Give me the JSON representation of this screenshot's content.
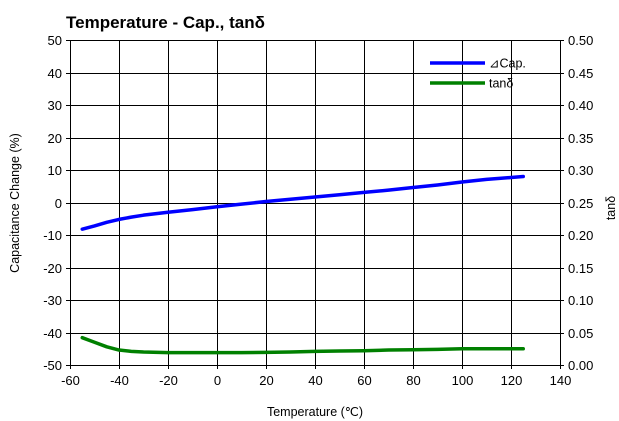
{
  "chart_data": {
    "type": "line",
    "title": "Temperature - Cap., tanδ",
    "xlabel": "Temperature (℃)",
    "ylabel": "Capacitance Change (%)",
    "y2label": "tanδ",
    "xlim": [
      -60,
      140
    ],
    "ylim": [
      -50,
      50
    ],
    "y2lim": [
      0,
      0.5
    ],
    "xticks": [
      "-60",
      "-40",
      "-20",
      "0",
      "20",
      "40",
      "60",
      "80",
      "100",
      "120",
      "140"
    ],
    "yticks": [
      "-50",
      "-40",
      "-30",
      "-20",
      "-10",
      "0",
      "10",
      "20",
      "30",
      "40",
      "50"
    ],
    "y2ticks": [
      "0.00",
      "0.05",
      "0.10",
      "0.15",
      "0.20",
      "0.25",
      "0.30",
      "0.35",
      "0.40",
      "0.45",
      "0.50"
    ],
    "grid": true,
    "legend_position": "top-right",
    "series": [
      {
        "name": "⊿Cap.",
        "axis": "left",
        "color": "#0000ff",
        "x": [
          -55,
          -50,
          -45,
          -40,
          -35,
          -30,
          -20,
          -10,
          0,
          10,
          20,
          30,
          40,
          50,
          60,
          70,
          80,
          90,
          100,
          110,
          120,
          125
        ],
        "y": [
          -8.2,
          -7.2,
          -6.1,
          -5.2,
          -4.5,
          -3.9,
          -3.0,
          -2.2,
          -1.3,
          -0.5,
          0.3,
          1.0,
          1.7,
          2.4,
          3.1,
          3.8,
          4.6,
          5.4,
          6.3,
          7.1,
          7.7,
          8.0
        ]
      },
      {
        "name": "tanδ",
        "axis": "right",
        "color": "#008000",
        "x": [
          -55,
          -50,
          -45,
          -40,
          -35,
          -30,
          -20,
          -10,
          0,
          10,
          20,
          30,
          40,
          50,
          60,
          70,
          80,
          90,
          100,
          110,
          120,
          125
        ],
        "y": [
          0.042,
          0.035,
          0.028,
          0.023,
          0.021,
          0.02,
          0.019,
          0.019,
          0.019,
          0.019,
          0.0195,
          0.02,
          0.021,
          0.0215,
          0.022,
          0.023,
          0.0235,
          0.024,
          0.025,
          0.025,
          0.025,
          0.025
        ]
      }
    ]
  }
}
